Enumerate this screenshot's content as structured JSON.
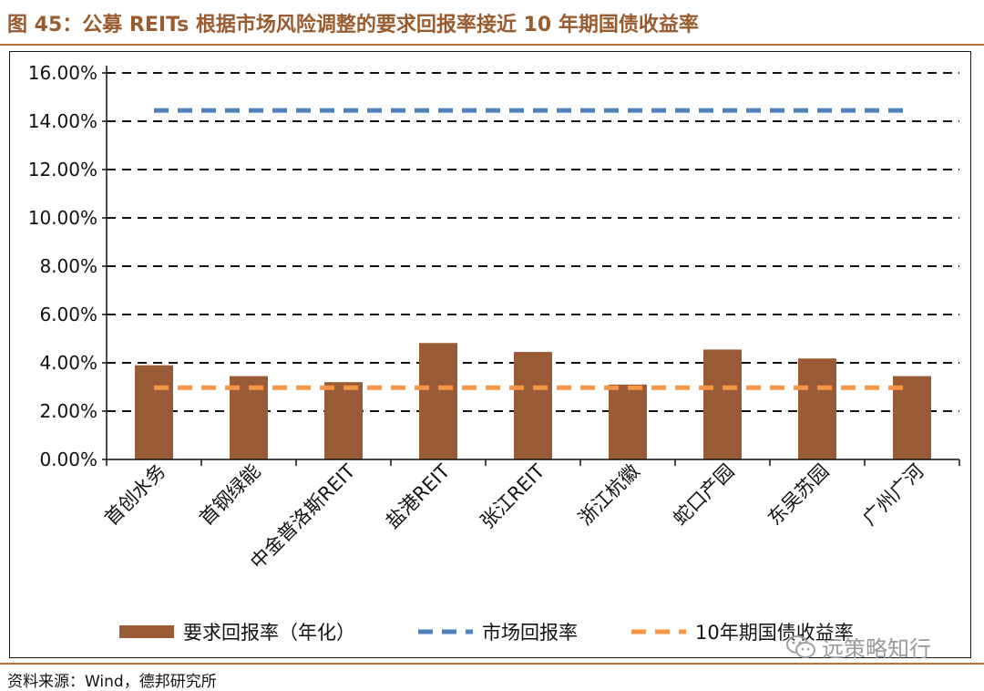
{
  "figure": {
    "title": "图 45：公募 REITs 根据市场风险调整的要求回报率接近 10 年期国债收益率",
    "source": "资料来源：Wind，德邦研究所",
    "watermark_text": "远策略知行",
    "watermark_icon": "wechat-icon"
  },
  "chart_data": {
    "type": "bar",
    "title": "",
    "xlabel": "",
    "ylabel": "",
    "categories": [
      "首创水务",
      "首钢绿能",
      "中金普洛斯REIT",
      "盐港REIT",
      "张江REIT",
      "浙江杭徽",
      "蛇口产园",
      "东吴苏园",
      "广州广河"
    ],
    "series": [
      {
        "name": "要求回报率（年化）",
        "type": "bar",
        "color": "#9a5c36",
        "values": [
          3.9,
          3.45,
          3.2,
          4.82,
          4.45,
          3.1,
          4.55,
          4.18,
          3.45
        ]
      },
      {
        "name": "市场回报率",
        "type": "line",
        "style": "dashed",
        "color": "#4f81bd",
        "values": [
          14.45,
          14.45,
          14.45,
          14.45,
          14.45,
          14.45,
          14.45,
          14.45,
          14.45
        ]
      },
      {
        "name": "10年期国债收益率",
        "type": "line",
        "style": "dashed",
        "color": "#f79646",
        "values": [
          2.97,
          2.97,
          2.97,
          2.97,
          2.97,
          2.97,
          2.97,
          2.97,
          2.97
        ]
      }
    ],
    "ylim": [
      0,
      16
    ],
    "yticks": [
      0,
      2,
      4,
      6,
      8,
      10,
      12,
      14,
      16
    ],
    "ytick_labels": [
      "0.00%",
      "2.00%",
      "4.00%",
      "6.00%",
      "8.00%",
      "10.00%",
      "12.00%",
      "14.00%",
      "16.00%"
    ],
    "grid": true,
    "grid_style": "dashed",
    "legend_position": "bottom"
  }
}
